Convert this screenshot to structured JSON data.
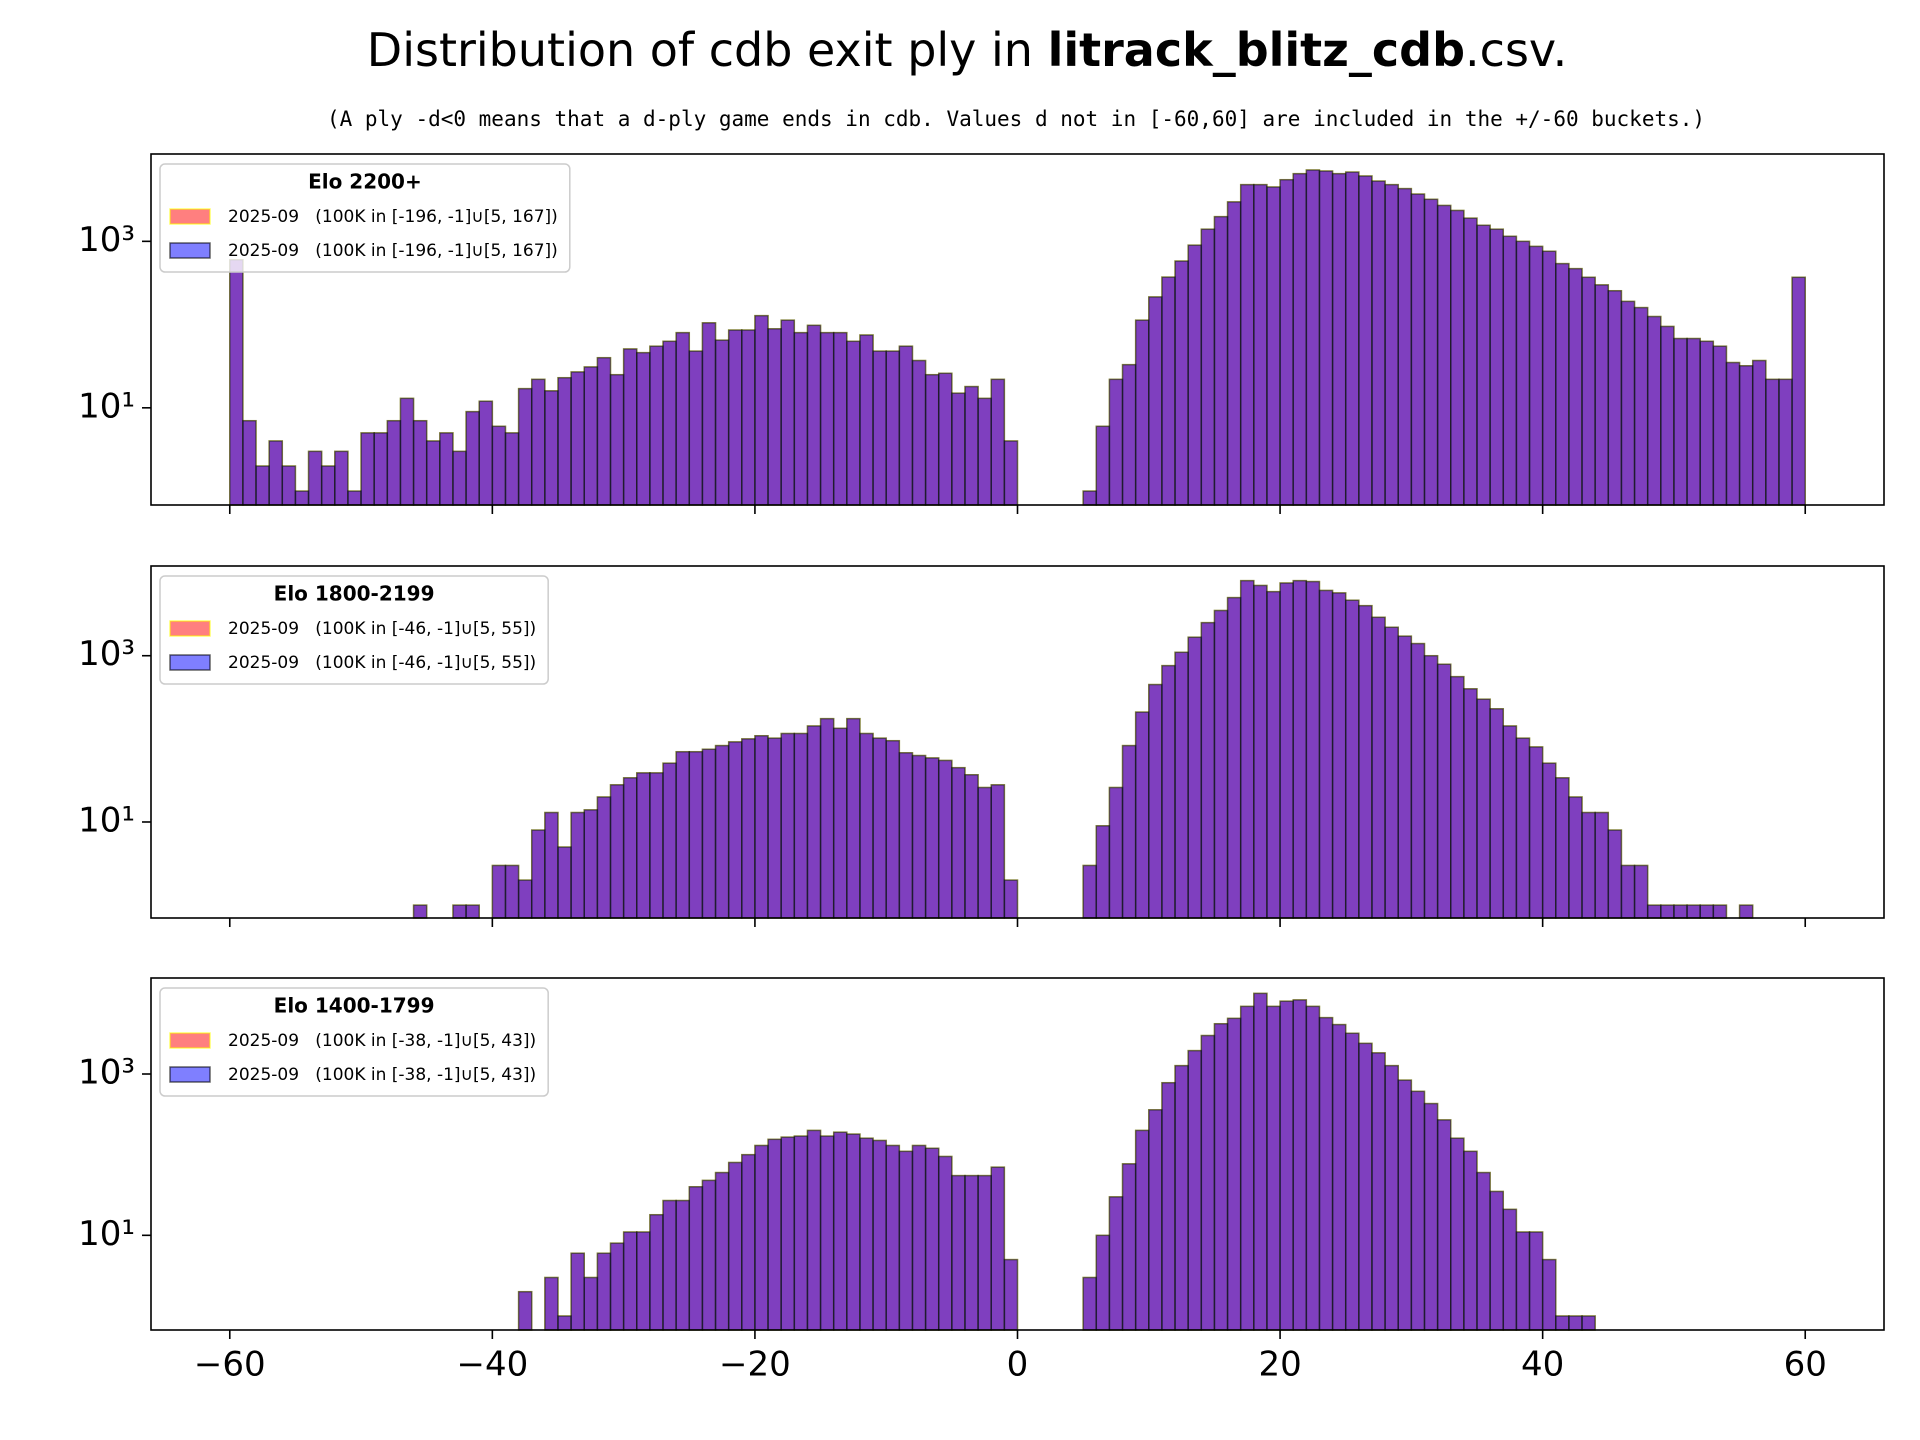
{
  "title": [
    "Distribution of cdb exit ply in ",
    "litrack_blitz_cdb",
    ".csv."
  ],
  "subtitle": "(A ply -d<0 means that a d-ply game ends in cdb. Values d not in [-60,60] are included in the +/-60 buckets.)",
  "chart_data": [
    {
      "type": "histogram",
      "legend_title": "Elo 2200+",
      "legend": "upper left",
      "yscale": "log",
      "xlim": [
        -66,
        66
      ],
      "xticks": [
        -60,
        -40,
        -20,
        0,
        20,
        40,
        60
      ],
      "xtick_labels": false,
      "ylim": [
        0.68,
        11200
      ],
      "yticks": [
        {
          "value": 10,
          "label": "10¹"
        },
        {
          "value": 1000,
          "label": "10³"
        }
      ],
      "bins": [
        -60,
        -59,
        -58,
        -57,
        -56,
        -55,
        -54,
        -53,
        -52,
        -51,
        -50,
        -49,
        -48,
        -47,
        -46,
        -45,
        -44,
        -43,
        -42,
        -41,
        -40,
        -39,
        -38,
        -37,
        -36,
        -35,
        -34,
        -33,
        -32,
        -31,
        -30,
        -29,
        -28,
        -27,
        -26,
        -25,
        -24,
        -23,
        -22,
        -21,
        -20,
        -19,
        -18,
        -17,
        -16,
        -15,
        -14,
        -13,
        -12,
        -11,
        -10,
        -9,
        -8,
        -7,
        -6,
        -5,
        -4,
        -3,
        -2,
        -1,
        0,
        1,
        2,
        3,
        4,
        5,
        6,
        7,
        8,
        9,
        10,
        11,
        12,
        13,
        14,
        15,
        16,
        17,
        18,
        19,
        20,
        21,
        22,
        23,
        24,
        25,
        26,
        27,
        28,
        29,
        30,
        31,
        32,
        33,
        34,
        35,
        36,
        37,
        38,
        39,
        40,
        41,
        42,
        43,
        44,
        45,
        46,
        47,
        48,
        49,
        50,
        51,
        52,
        53,
        54,
        55,
        56,
        57,
        58,
        59,
        60
      ],
      "series": [
        {
          "name": "2025-09   (100K in [-196, -1]∪[5, 167])",
          "color": "red",
          "edgecolor": "yellow",
          "values": [
            600,
            7,
            2,
            4,
            2,
            1,
            3,
            2,
            3,
            1,
            5,
            5,
            7,
            13,
            7,
            4,
            5,
            3,
            9,
            12,
            6,
            5,
            17,
            22,
            16,
            23,
            27,
            31,
            40,
            25,
            51,
            46,
            55,
            63,
            80,
            48,
            105,
            65,
            86,
            86,
            128,
            89,
            113,
            80,
            98,
            80,
            80,
            63,
            75,
            48,
            48,
            55,
            37,
            25,
            26,
            15,
            18,
            13,
            22,
            4,
            0,
            0,
            0,
            0,
            0,
            1,
            6,
            22,
            33,
            113,
            215,
            372,
            580,
            900,
            1400,
            1980,
            2980,
            4800,
            4800,
            4500,
            5500,
            6500,
            7200,
            7000,
            6500,
            6800,
            6100,
            5300,
            4800,
            4300,
            3700,
            3200,
            2700,
            2350,
            1900,
            1560,
            1400,
            1150,
            1000,
            870,
            760,
            540,
            470,
            370,
            300,
            255,
            190,
            160,
            125,
            95,
            68,
            68,
            63,
            55,
            35,
            32,
            37,
            22,
            22,
            370
          ]
        },
        {
          "name": "2025-09   (100K in [-196, -1]∪[5, 167])",
          "color": "blue",
          "edgecolor": "black",
          "values": [
            600,
            7,
            2,
            4,
            2,
            1,
            3,
            2,
            3,
            1,
            5,
            5,
            7,
            13,
            7,
            4,
            5,
            3,
            9,
            12,
            6,
            5,
            17,
            22,
            16,
            23,
            27,
            31,
            40,
            25,
            51,
            46,
            55,
            63,
            80,
            48,
            105,
            65,
            86,
            86,
            128,
            89,
            113,
            80,
            98,
            80,
            80,
            63,
            75,
            48,
            48,
            55,
            37,
            25,
            26,
            15,
            18,
            13,
            22,
            4,
            0,
            0,
            0,
            0,
            0,
            1,
            6,
            22,
            33,
            113,
            215,
            372,
            580,
            900,
            1400,
            1980,
            2980,
            4800,
            4800,
            4500,
            5500,
            6500,
            7200,
            7000,
            6500,
            6800,
            6100,
            5300,
            4800,
            4300,
            3700,
            3200,
            2700,
            2350,
            1900,
            1560,
            1400,
            1150,
            1000,
            870,
            760,
            540,
            470,
            370,
            300,
            255,
            190,
            160,
            125,
            95,
            68,
            68,
            63,
            55,
            35,
            32,
            37,
            22,
            22,
            370
          ]
        }
      ]
    },
    {
      "type": "histogram",
      "legend_title": "Elo 1800-2199",
      "legend": "upper left",
      "yscale": "log",
      "xlim": [
        -66,
        66
      ],
      "xticks": [
        -60,
        -40,
        -20,
        0,
        20,
        40,
        60
      ],
      "xtick_labels": false,
      "ylim": [
        0.7,
        12000
      ],
      "yticks": [
        {
          "value": 10,
          "label": "10¹"
        },
        {
          "value": 1000,
          "label": "10³"
        }
      ],
      "bins": [
        -60,
        -59,
        -58,
        -57,
        -56,
        -55,
        -54,
        -53,
        -52,
        -51,
        -50,
        -49,
        -48,
        -47,
        -46,
        -45,
        -44,
        -43,
        -42,
        -41,
        -40,
        -39,
        -38,
        -37,
        -36,
        -35,
        -34,
        -33,
        -32,
        -31,
        -30,
        -29,
        -28,
        -27,
        -26,
        -25,
        -24,
        -23,
        -22,
        -21,
        -20,
        -19,
        -18,
        -17,
        -16,
        -15,
        -14,
        -13,
        -12,
        -11,
        -10,
        -9,
        -8,
        -7,
        -6,
        -5,
        -4,
        -3,
        -2,
        -1,
        0,
        1,
        2,
        3,
        4,
        5,
        6,
        7,
        8,
        9,
        10,
        11,
        12,
        13,
        14,
        15,
        16,
        17,
        18,
        19,
        20,
        21,
        22,
        23,
        24,
        25,
        26,
        27,
        28,
        29,
        30,
        31,
        32,
        33,
        34,
        35,
        36,
        37,
        38,
        39,
        40,
        41,
        42,
        43,
        44,
        45,
        46,
        47,
        48,
        49,
        50,
        51,
        52,
        53,
        54,
        55,
        56,
        57,
        58,
        59,
        60
      ],
      "series": [
        {
          "name": "2025-09   (100K in [-46, -1]∪[5, 55])",
          "color": "red",
          "edgecolor": "yellow",
          "values": [
            0,
            0,
            0,
            0,
            0,
            0,
            0,
            0,
            0,
            0,
            0,
            0,
            0,
            0,
            1,
            0,
            0,
            1,
            1,
            0,
            3,
            3,
            2,
            8,
            13,
            5,
            13,
            14,
            20,
            28,
            34,
            39,
            39,
            51,
            70,
            70,
            75,
            83,
            92,
            100,
            109,
            102,
            116,
            116,
            143,
            175,
            134,
            175,
            116,
            102,
            95,
            68,
            63,
            59,
            55,
            45,
            37,
            26,
            28,
            2,
            0,
            0,
            0,
            0,
            0,
            3,
            9,
            26,
            83,
            210,
            450,
            760,
            1100,
            1670,
            2500,
            3500,
            5000,
            8000,
            7000,
            5900,
            7500,
            8000,
            7800,
            6100,
            5700,
            4650,
            4000,
            2900,
            2200,
            1720,
            1400,
            1000,
            790,
            560,
            400,
            300,
            230,
            143,
            102,
            80,
            51,
            34,
            20,
            13,
            13,
            8,
            3,
            3,
            1,
            1,
            1,
            1,
            1,
            1,
            0,
            1,
            0,
            0,
            0,
            0
          ]
        },
        {
          "name": "2025-09   (100K in [-46, -1]∪[5, 55])",
          "color": "blue",
          "edgecolor": "black",
          "values": [
            0,
            0,
            0,
            0,
            0,
            0,
            0,
            0,
            0,
            0,
            0,
            0,
            0,
            0,
            1,
            0,
            0,
            1,
            1,
            0,
            3,
            3,
            2,
            8,
            13,
            5,
            13,
            14,
            20,
            28,
            34,
            39,
            39,
            51,
            70,
            70,
            75,
            83,
            92,
            100,
            109,
            102,
            116,
            116,
            143,
            175,
            134,
            175,
            116,
            102,
            95,
            68,
            63,
            59,
            55,
            45,
            37,
            26,
            28,
            2,
            0,
            0,
            0,
            0,
            0,
            3,
            9,
            26,
            83,
            210,
            450,
            760,
            1100,
            1670,
            2500,
            3500,
            5000,
            8000,
            7000,
            5900,
            7500,
            8000,
            7800,
            6100,
            5700,
            4650,
            4000,
            2900,
            2200,
            1720,
            1400,
            1000,
            790,
            560,
            400,
            300,
            230,
            143,
            102,
            80,
            51,
            34,
            20,
            13,
            13,
            8,
            3,
            3,
            1,
            1,
            1,
            1,
            1,
            1,
            0,
            1,
            0,
            0,
            0,
            0
          ]
        }
      ]
    },
    {
      "type": "histogram",
      "legend_title": "Elo 1400-1799",
      "legend": "upper left",
      "yscale": "log",
      "xlim": [
        -66,
        66
      ],
      "xticks": [
        {
          "value": -60,
          "label": "−60"
        },
        {
          "value": -40,
          "label": "−40"
        },
        {
          "value": -20,
          "label": "−20"
        },
        0,
        20,
        40,
        60
      ],
      "ylim": [
        0.67,
        15500
      ],
      "yticks": [
        {
          "value": 10,
          "label": "10¹"
        },
        {
          "value": 1000,
          "label": "10³"
        }
      ],
      "bins": [
        -60,
        -59,
        -58,
        -57,
        -56,
        -55,
        -54,
        -53,
        -52,
        -51,
        -50,
        -49,
        -48,
        -47,
        -46,
        -45,
        -44,
        -43,
        -42,
        -41,
        -40,
        -39,
        -38,
        -37,
        -36,
        -35,
        -34,
        -33,
        -32,
        -31,
        -30,
        -29,
        -28,
        -27,
        -26,
        -25,
        -24,
        -23,
        -22,
        -21,
        -20,
        -19,
        -18,
        -17,
        -16,
        -15,
        -14,
        -13,
        -12,
        -11,
        -10,
        -9,
        -8,
        -7,
        -6,
        -5,
        -4,
        -3,
        -2,
        -1,
        0,
        1,
        2,
        3,
        4,
        5,
        6,
        7,
        8,
        9,
        10,
        11,
        12,
        13,
        14,
        15,
        16,
        17,
        18,
        19,
        20,
        21,
        22,
        23,
        24,
        25,
        26,
        27,
        28,
        29,
        30,
        31,
        32,
        33,
        34,
        35,
        36,
        37,
        38,
        39,
        40,
        41,
        42,
        43,
        44,
        45,
        46,
        47,
        48,
        49,
        50,
        51,
        52,
        53,
        54,
        55,
        56,
        57,
        58,
        59,
        60
      ],
      "series": [
        {
          "name": "2025-09   (100K in [-38, -1]∪[5, 43])",
          "color": "red",
          "edgecolor": "yellow",
          "values": [
            0,
            0,
            0,
            0,
            0,
            0,
            0,
            0,
            0,
            0,
            0,
            0,
            0,
            0,
            0,
            0,
            0,
            0,
            0,
            0,
            0,
            0,
            2,
            0,
            3,
            1,
            6,
            3,
            6,
            8,
            11,
            11,
            18,
            27,
            27,
            40,
            48,
            60,
            80,
            100,
            130,
            155,
            165,
            170,
            200,
            170,
            190,
            180,
            160,
            150,
            130,
            110,
            130,
            120,
            95,
            55,
            55,
            55,
            70,
            5,
            0,
            0,
            0,
            0,
            0,
            3,
            10,
            30,
            77,
            200,
            360,
            780,
            1270,
            1950,
            3000,
            4200,
            4900,
            6900,
            10000,
            6900,
            8000,
            8300,
            6900,
            5000,
            4100,
            3200,
            2400,
            1830,
            1270,
            840,
            610,
            430,
            270,
            160,
            110,
            60,
            35,
            21,
            11,
            11,
            5,
            1,
            1,
            1,
            0,
            0,
            0,
            0,
            0,
            0,
            0,
            0,
            0,
            0,
            0,
            0,
            0,
            0,
            0,
            0
          ]
        },
        {
          "name": "2025-09   (100K in [-38, -1]∪[5, 43])",
          "color": "blue",
          "edgecolor": "black",
          "values": [
            0,
            0,
            0,
            0,
            0,
            0,
            0,
            0,
            0,
            0,
            0,
            0,
            0,
            0,
            0,
            0,
            0,
            0,
            0,
            0,
            0,
            0,
            2,
            0,
            3,
            1,
            6,
            3,
            6,
            8,
            11,
            11,
            18,
            27,
            27,
            40,
            48,
            60,
            80,
            100,
            130,
            155,
            165,
            170,
            200,
            170,
            190,
            180,
            160,
            150,
            130,
            110,
            130,
            120,
            95,
            55,
            55,
            55,
            70,
            5,
            0,
            0,
            0,
            0,
            0,
            3,
            10,
            30,
            77,
            200,
            360,
            780,
            1270,
            1950,
            3000,
            4200,
            4900,
            6900,
            10000,
            6900,
            8000,
            8300,
            6900,
            5000,
            4100,
            3200,
            2400,
            1830,
            1270,
            840,
            610,
            430,
            270,
            160,
            110,
            60,
            35,
            21,
            11,
            11,
            5,
            1,
            1,
            1,
            0,
            0,
            0,
            0,
            0,
            0,
            0,
            0,
            0,
            0,
            0,
            0,
            0,
            0,
            0,
            0
          ]
        }
      ]
    }
  ]
}
